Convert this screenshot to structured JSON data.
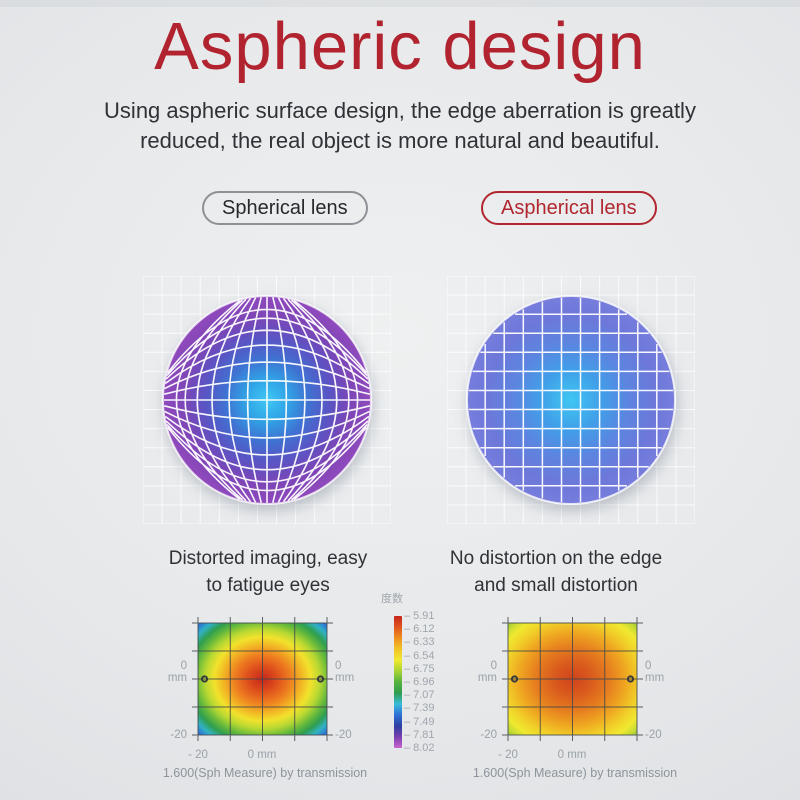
{
  "page": {
    "title": "Aspheric design",
    "subtitle_line1": "Using aspheric surface design, the edge aberration is greatly",
    "subtitle_line2": "reduced, the real object is more natural and beautiful."
  },
  "colors": {
    "accent_red": "#b1242f",
    "text_dark": "#2f3236",
    "label_gray": "#9aa2a9",
    "pill_gray_border": "#8d9196",
    "grid_white": "#ffffff",
    "heatmap_grid_line": "#43464a"
  },
  "comparison": {
    "left": {
      "label": "Spherical lens",
      "caption_line1": "Distorted imaging, easy",
      "caption_line2": "to fatigue eyes"
    },
    "right": {
      "label": "Aspherical lens",
      "caption_line1": "No distortion on the edge",
      "caption_line2": "and small distortion"
    }
  },
  "figures": {
    "spherical_lens": {
      "gradient": [
        [
          "0%",
          "#40c8f4"
        ],
        [
          "20%",
          "#30a4e6"
        ],
        [
          "40%",
          "#3f72d2"
        ],
        [
          "60%",
          "#5a54c4"
        ],
        [
          "80%",
          "#7c45b6"
        ],
        [
          "100%",
          "#9049bc"
        ]
      ],
      "distortion": "pincushion-fisheye"
    },
    "aspherical_lens": {
      "gradient": [
        [
          "0%",
          "#3ec6f2"
        ],
        [
          "30%",
          "#419ee8"
        ],
        [
          "55%",
          "#5c85e0"
        ],
        [
          "80%",
          "#6c78da"
        ],
        [
          "100%",
          "#767cdc"
        ]
      ],
      "distortion": "none"
    }
  },
  "heatmaps": {
    "axis": {
      "zero": "0",
      "unit": "mm",
      "neg": "-20",
      "x_neg": "- 20",
      "x_zero": "0 mm"
    },
    "caption": "1.600(Sph Measure) by transmission",
    "legend": {
      "title": "度数",
      "tick": "–",
      "values": [
        "5.91",
        "6.12",
        "6.33",
        "6.54",
        "6.75",
        "6.96",
        "7.07",
        "7.39",
        "7.49",
        "7.81",
        "8.02"
      ],
      "bar_colors": [
        "#c6241a",
        "#e0551d",
        "#ef8e20",
        "#f2c326",
        "#f1e930",
        "#a8d334",
        "#55b23d",
        "#2f9d4f",
        "#38bcd8",
        "#2e70d6",
        "#2c3f9f",
        "#7a3fb0",
        "#c863ce"
      ]
    },
    "left": {
      "gradient": [
        [
          "0%",
          "#c5271a"
        ],
        [
          "15%",
          "#dd4c1c"
        ],
        [
          "30%",
          "#ee7e20"
        ],
        [
          "42%",
          "#f2b524"
        ],
        [
          "52%",
          "#f2e22c"
        ],
        [
          "62%",
          "#b8d832"
        ],
        [
          "72%",
          "#63b83c"
        ],
        [
          "80%",
          "#2f9e50"
        ],
        [
          "88%",
          "#31b2c3"
        ],
        [
          "96%",
          "#2d72d8"
        ],
        [
          "100%",
          "#2c5fd0"
        ]
      ]
    },
    "right": {
      "gradient": [
        [
          "0%",
          "#d0431d"
        ],
        [
          "20%",
          "#d95a1d"
        ],
        [
          "40%",
          "#e67d1f"
        ],
        [
          "58%",
          "#efa821"
        ],
        [
          "72%",
          "#f1cf28"
        ],
        [
          "84%",
          "#f0e930"
        ],
        [
          "93%",
          "#c0d934"
        ],
        [
          "100%",
          "#7dbd3c"
        ]
      ]
    }
  },
  "chart_data": [
    {
      "type": "heatmap",
      "title": "Spherical lens power map",
      "caption": "1.600(Sph Measure) by transmission",
      "x_axis": {
        "tick_labels": [
          "- 20",
          "0 mm"
        ],
        "range_mm": [
          -20,
          20
        ]
      },
      "y_axis": {
        "tick_labels": [
          "0 mm",
          "-20"
        ],
        "range_mm": [
          -20,
          20
        ]
      },
      "color_scale": {
        "title": "度数",
        "tick_values": [
          5.91,
          6.12,
          6.33,
          6.54,
          6.75,
          6.96,
          7.07,
          7.39,
          7.49,
          7.81,
          8.02
        ],
        "top_color": "red",
        "bottom_color": "magenta"
      },
      "pattern": "concentric radial: red center, orange, yellow, green rings, cyan-blue corners (strong power variation)"
    },
    {
      "type": "heatmap",
      "title": "Aspherical lens power map",
      "caption": "1.600(Sph Measure) by transmission",
      "x_axis": {
        "tick_labels": [
          "- 20",
          "0 mm"
        ],
        "range_mm": [
          -20,
          20
        ]
      },
      "y_axis": {
        "tick_labels": [
          "0 mm",
          "-20"
        ],
        "range_mm": [
          -20,
          20
        ]
      },
      "color_scale": {
        "title": "度数",
        "tick_values": [
          5.91,
          6.12,
          6.33,
          6.54,
          6.75,
          6.96,
          7.07,
          7.39,
          7.49,
          7.81,
          8.02
        ],
        "top_color": "red",
        "bottom_color": "magenta"
      },
      "pattern": "broad red-orange center, yellow edges, green only at corners (small power variation)"
    }
  ]
}
